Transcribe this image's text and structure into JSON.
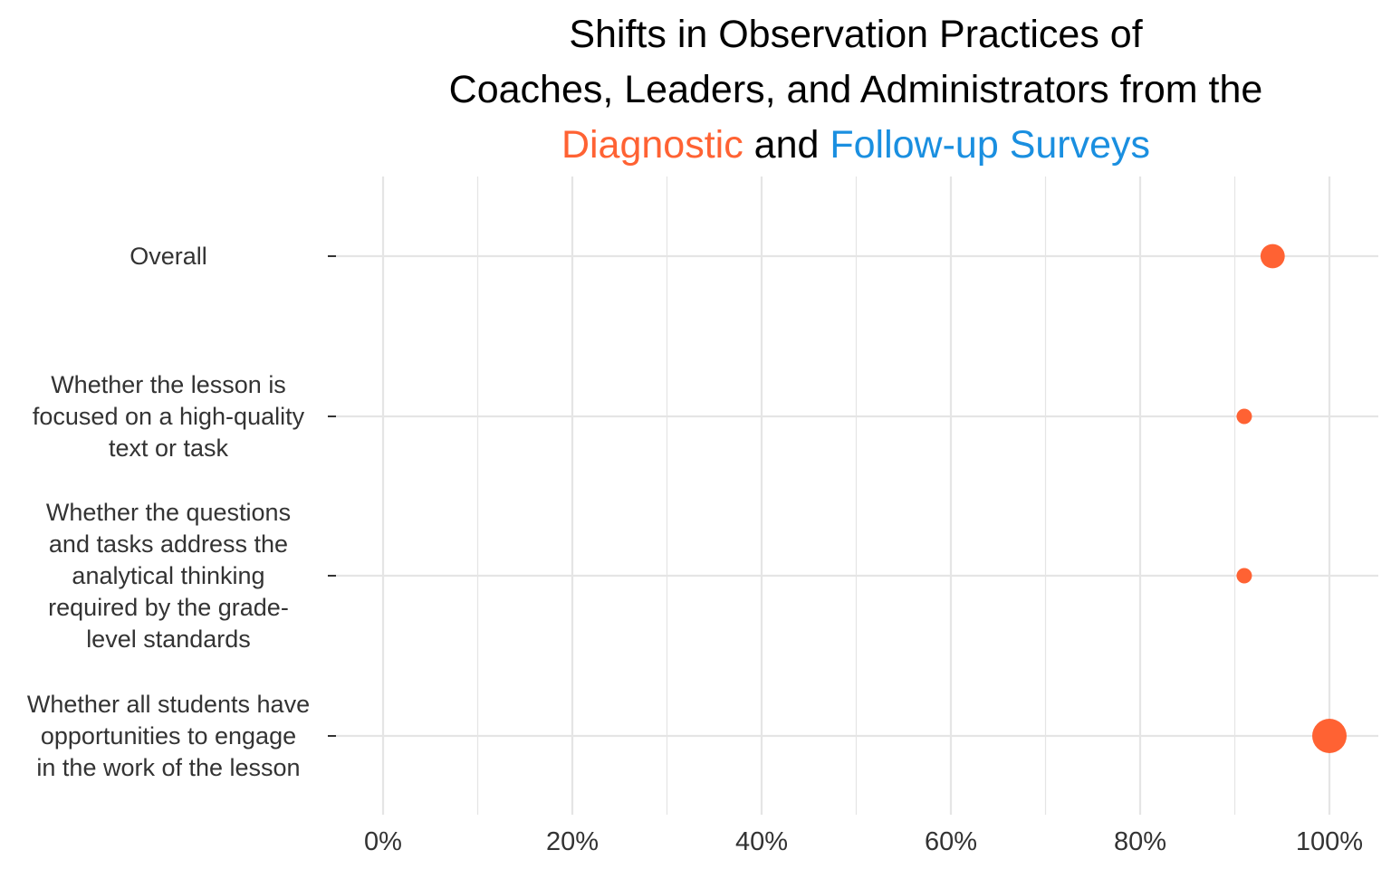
{
  "title": {
    "line1": "Shifts in Observation Practices of",
    "line2": "Coaches, Leaders, and Administrators from the",
    "line3_part1": "Diagnostic",
    "line3_part2": " and ",
    "line3_part3": "Follow-up Surveys"
  },
  "colors": {
    "diagnostic": "#FF6233",
    "follow_up": "#1A8FE0",
    "grid": "#E5E5E5",
    "text": "#333333"
  },
  "chart_data": {
    "type": "scatter",
    "title": "Shifts in Observation Practices of Coaches, Leaders, and Administrators from the Diagnostic and Follow-up Surveys",
    "xlabel": "",
    "ylabel": "",
    "xlim": [
      0,
      1
    ],
    "x_ticks": [
      0,
      0.2,
      0.4,
      0.6,
      0.8,
      1.0
    ],
    "x_tick_labels": [
      "0%",
      "20%",
      "40%",
      "60%",
      "80%",
      "100%"
    ],
    "grid": true,
    "categories": [
      [
        "Overall"
      ],
      [
        "Whether the lesson is",
        "focused on a high-quality",
        "text or task"
      ],
      [
        "Whether the questions",
        "and tasks address the",
        "analytical thinking",
        "required by the grade-",
        "level standards"
      ],
      [
        "Whether all students have",
        "opportunities to engage",
        "in the work of the lesson"
      ]
    ],
    "series": [
      {
        "name": "Diagnostic",
        "values": [
          0.94,
          0.91,
          0.91,
          1.0
        ],
        "relative_size": [
          0.6,
          0.25,
          0.25,
          1.0
        ]
      }
    ]
  }
}
